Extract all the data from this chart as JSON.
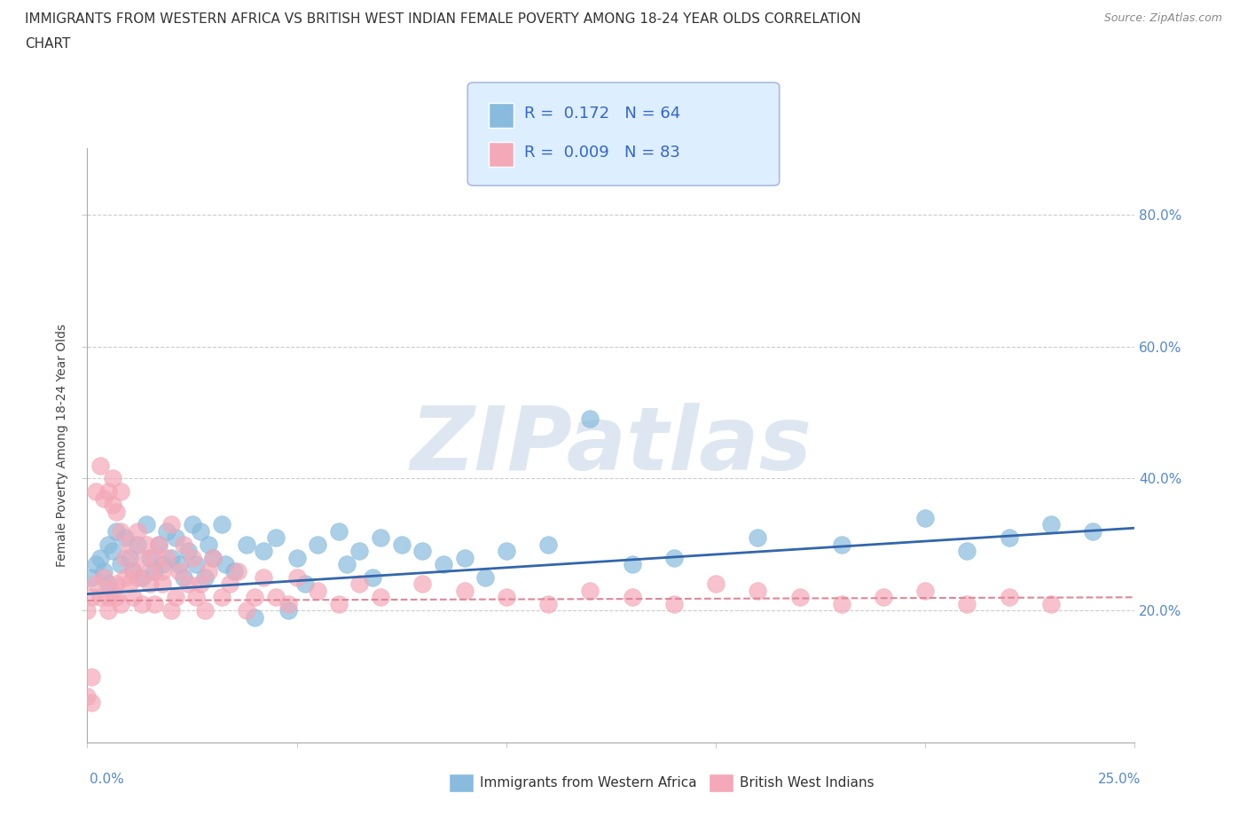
{
  "title_line1": "IMMIGRANTS FROM WESTERN AFRICA VS BRITISH WEST INDIAN FEMALE POVERTY AMONG 18-24 YEAR OLDS CORRELATION",
  "title_line2": "CHART",
  "source_text": "Source: ZipAtlas.com",
  "ylabel": "Female Poverty Among 18-24 Year Olds",
  "xlim": [
    0.0,
    0.25
  ],
  "ylim": [
    0.0,
    0.9
  ],
  "xtick_vals": [
    0.0,
    0.05,
    0.1,
    0.15,
    0.2,
    0.25
  ],
  "ytick_vals": [
    0.2,
    0.4,
    0.6,
    0.8
  ],
  "ytick_labels": [
    "20.0%",
    "40.0%",
    "60.0%",
    "80.0%"
  ],
  "legend_box_color": "#ddeeff",
  "legend_border_color": "#aabbdd",
  "blue_color": "#88bbdd",
  "pink_color": "#f4a8b8",
  "blue_line_color": "#3366aa",
  "pink_line_color": "#dd8899",
  "grid_color": "#cccccc",
  "R_blue": 0.172,
  "N_blue": 64,
  "R_pink": 0.009,
  "N_pink": 83,
  "blue_scatter_x": [
    0.001,
    0.002,
    0.003,
    0.004,
    0.005,
    0.005,
    0.006,
    0.007,
    0.008,
    0.009,
    0.01,
    0.011,
    0.012,
    0.013,
    0.014,
    0.015,
    0.016,
    0.017,
    0.018,
    0.019,
    0.02,
    0.021,
    0.022,
    0.023,
    0.024,
    0.025,
    0.026,
    0.027,
    0.028,
    0.029,
    0.03,
    0.032,
    0.033,
    0.035,
    0.038,
    0.04,
    0.042,
    0.045,
    0.048,
    0.05,
    0.052,
    0.055,
    0.06,
    0.062,
    0.065,
    0.068,
    0.07,
    0.075,
    0.08,
    0.085,
    0.09,
    0.095,
    0.1,
    0.11,
    0.12,
    0.13,
    0.14,
    0.16,
    0.18,
    0.2,
    0.21,
    0.22,
    0.23,
    0.24
  ],
  "blue_scatter_y": [
    0.25,
    0.27,
    0.28,
    0.26,
    0.3,
    0.24,
    0.29,
    0.32,
    0.27,
    0.31,
    0.28,
    0.26,
    0.3,
    0.25,
    0.33,
    0.28,
    0.26,
    0.3,
    0.27,
    0.32,
    0.28,
    0.31,
    0.27,
    0.25,
    0.29,
    0.33,
    0.27,
    0.32,
    0.25,
    0.3,
    0.28,
    0.33,
    0.27,
    0.26,
    0.3,
    0.19,
    0.29,
    0.31,
    0.2,
    0.28,
    0.24,
    0.3,
    0.32,
    0.27,
    0.29,
    0.25,
    0.31,
    0.3,
    0.29,
    0.27,
    0.28,
    0.25,
    0.29,
    0.3,
    0.49,
    0.27,
    0.28,
    0.31,
    0.3,
    0.34,
    0.29,
    0.31,
    0.33,
    0.32
  ],
  "pink_scatter_x": [
    0.0,
    0.001,
    0.001,
    0.002,
    0.002,
    0.003,
    0.003,
    0.004,
    0.004,
    0.005,
    0.005,
    0.005,
    0.006,
    0.006,
    0.006,
    0.007,
    0.007,
    0.007,
    0.008,
    0.008,
    0.008,
    0.009,
    0.009,
    0.01,
    0.01,
    0.011,
    0.011,
    0.012,
    0.012,
    0.013,
    0.013,
    0.014,
    0.015,
    0.015,
    0.016,
    0.016,
    0.017,
    0.018,
    0.018,
    0.019,
    0.02,
    0.02,
    0.021,
    0.022,
    0.023,
    0.024,
    0.025,
    0.026,
    0.027,
    0.028,
    0.029,
    0.03,
    0.032,
    0.034,
    0.036,
    0.038,
    0.04,
    0.042,
    0.045,
    0.048,
    0.05,
    0.055,
    0.06,
    0.065,
    0.07,
    0.08,
    0.09,
    0.1,
    0.11,
    0.12,
    0.13,
    0.14,
    0.15,
    0.16,
    0.17,
    0.18,
    0.19,
    0.2,
    0.21,
    0.22,
    0.23,
    0.0,
    0.001
  ],
  "pink_scatter_y": [
    0.2,
    0.22,
    0.1,
    0.24,
    0.38,
    0.22,
    0.42,
    0.25,
    0.37,
    0.2,
    0.38,
    0.22,
    0.36,
    0.23,
    0.4,
    0.24,
    0.35,
    0.22,
    0.38,
    0.21,
    0.32,
    0.25,
    0.28,
    0.24,
    0.3,
    0.26,
    0.22,
    0.25,
    0.32,
    0.21,
    0.28,
    0.3,
    0.24,
    0.26,
    0.21,
    0.28,
    0.3,
    0.24,
    0.26,
    0.28,
    0.2,
    0.33,
    0.22,
    0.26,
    0.3,
    0.24,
    0.28,
    0.22,
    0.24,
    0.2,
    0.26,
    0.28,
    0.22,
    0.24,
    0.26,
    0.2,
    0.22,
    0.25,
    0.22,
    0.21,
    0.25,
    0.23,
    0.21,
    0.24,
    0.22,
    0.24,
    0.23,
    0.22,
    0.21,
    0.23,
    0.22,
    0.21,
    0.24,
    0.23,
    0.22,
    0.21,
    0.22,
    0.23,
    0.21,
    0.22,
    0.21,
    0.07,
    0.06
  ],
  "watermark": "ZIPatlas",
  "watermark_color": "#c8d8e8",
  "blue_trendline_x": [
    0.0,
    0.25
  ],
  "blue_trendline_y": [
    0.225,
    0.325
  ],
  "pink_trendline_x": [
    0.0,
    0.25
  ],
  "pink_trendline_y": [
    0.215,
    0.22
  ],
  "bottom_legend_label1": "Immigrants from Western Africa",
  "bottom_legend_label2": "British West Indians"
}
